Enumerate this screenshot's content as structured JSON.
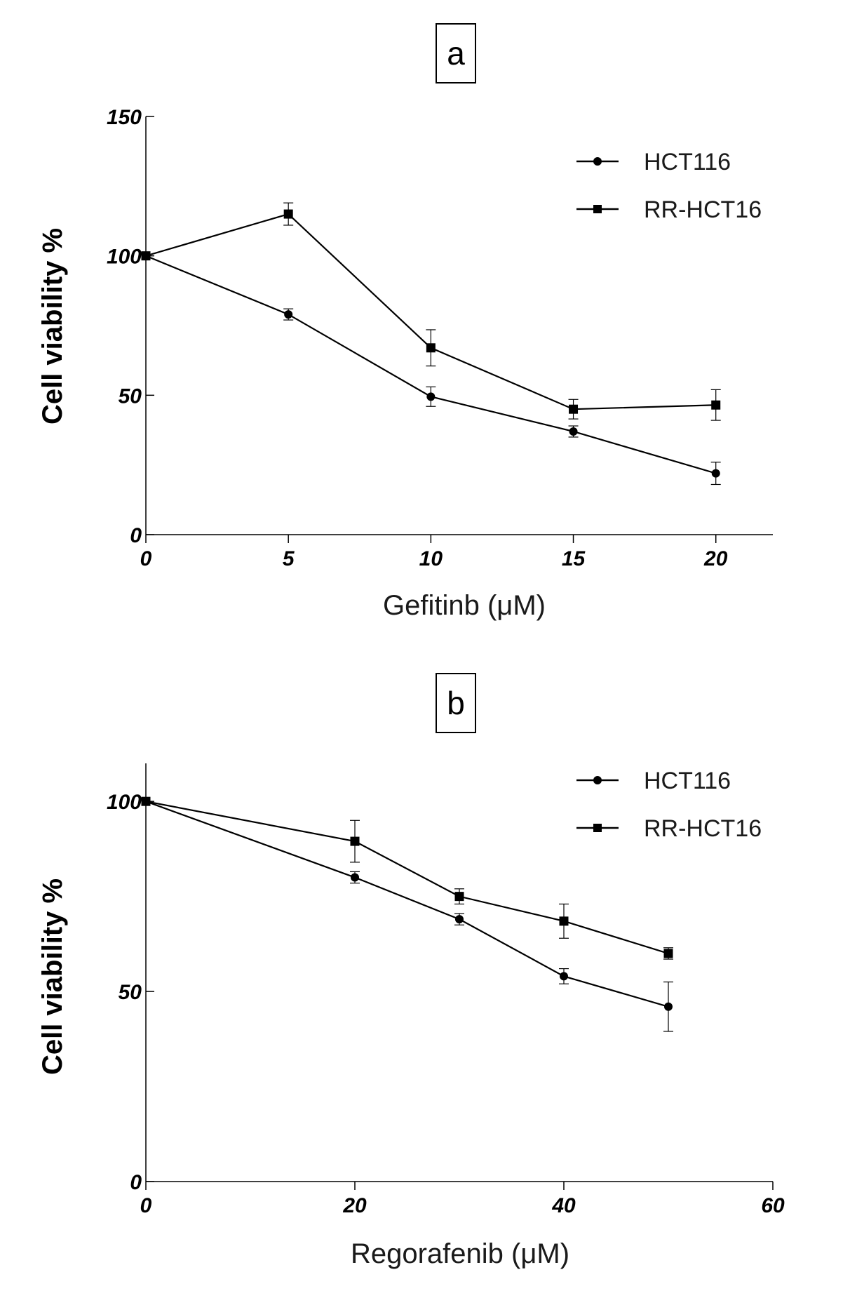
{
  "chart_data": [
    {
      "panel": "a",
      "type": "line",
      "xlabel": "Gefitinb (μM)",
      "ylabel": "Cell viability %",
      "xlim": [
        0,
        22
      ],
      "ylim": [
        0,
        150
      ],
      "xticks": [
        0,
        5,
        10,
        15,
        20
      ],
      "xtick_labels": [
        "0",
        "5",
        "10",
        "15",
        "20"
      ],
      "yticks": [
        0,
        50,
        100,
        150
      ],
      "ytick_labels": [
        "0",
        "50",
        "100",
        "150"
      ],
      "legend_position": "top-right",
      "series": [
        {
          "name": "HCT116",
          "marker": "circle",
          "x": [
            0,
            5,
            10,
            15,
            20
          ],
          "y": [
            100,
            79,
            49.5,
            37,
            22
          ],
          "err": [
            0,
            2,
            3.5,
            2,
            4
          ]
        },
        {
          "name": "RR-HCT16",
          "marker": "square",
          "x": [
            0,
            5,
            10,
            15,
            20
          ],
          "y": [
            100,
            115,
            67,
            45,
            46.5
          ],
          "err": [
            0,
            4,
            6.5,
            3.5,
            5.5
          ]
        }
      ]
    },
    {
      "panel": "b",
      "type": "line",
      "xlabel": "Regorafenib (μM)",
      "ylabel": "Cell viability %",
      "xlim": [
        0,
        60
      ],
      "ylim": [
        0,
        110
      ],
      "xticks": [
        0,
        20,
        40,
        60
      ],
      "xtick_labels": [
        "0",
        "20",
        "40",
        "60"
      ],
      "yticks": [
        0,
        50,
        100
      ],
      "ytick_labels": [
        "0",
        "50",
        "100"
      ],
      "legend_position": "top-right",
      "series": [
        {
          "name": "HCT116",
          "marker": "circle",
          "x": [
            0,
            20,
            30,
            40,
            50
          ],
          "y": [
            100,
            80,
            69,
            54,
            46
          ],
          "err": [
            0,
            1.5,
            1.5,
            2,
            6.5
          ]
        },
        {
          "name": "RR-HCT16",
          "marker": "square",
          "x": [
            0,
            20,
            30,
            40,
            50
          ],
          "y": [
            100,
            89.5,
            75,
            68.5,
            60
          ],
          "err": [
            0,
            5.5,
            2,
            4.5,
            1.5
          ]
        }
      ]
    }
  ]
}
